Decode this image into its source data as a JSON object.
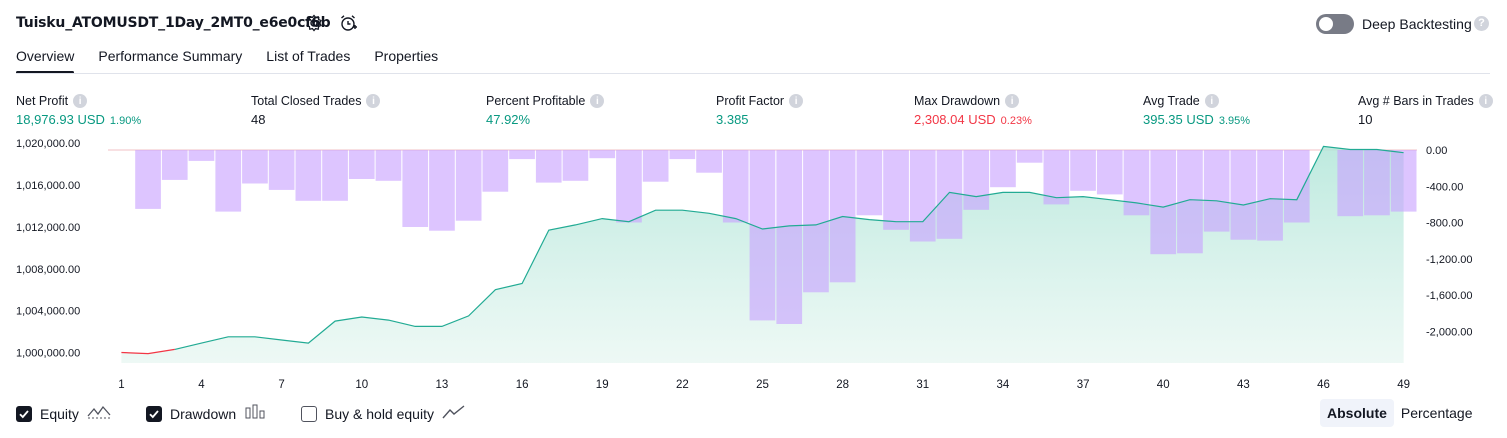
{
  "header": {
    "title": "Tuisku_ATOMUSDT_1Day_2MT0_e6e0cf6b",
    "settings_icon": "gear-icon",
    "alert_icon": "alarm-clock-plus-icon",
    "deep_backtesting_label": "Deep Backtesting",
    "deep_backtesting_enabled": false,
    "help_icon": "question-icon"
  },
  "tabs": [
    {
      "label": "Overview",
      "active": true
    },
    {
      "label": "Performance Summary",
      "active": false
    },
    {
      "label": "List of Trades",
      "active": false
    },
    {
      "label": "Properties",
      "active": false
    }
  ],
  "metrics": [
    {
      "label": "Net Profit",
      "value": "18,976.93 USD",
      "sub": "1.90%",
      "color": "#089981"
    },
    {
      "label": "Total Closed Trades",
      "value": "48",
      "sub": "",
      "color": "#131722"
    },
    {
      "label": "Percent Profitable",
      "value": "47.92%",
      "sub": "",
      "color": "#089981"
    },
    {
      "label": "Profit Factor",
      "value": "3.385",
      "sub": "",
      "color": "#089981"
    },
    {
      "label": "Max Drawdown",
      "value": "2,308.04 USD",
      "sub": "0.23%",
      "color": "#f23645"
    },
    {
      "label": "Avg Trade",
      "value": "395.35 USD",
      "sub": "3.95%",
      "color": "#089981"
    },
    {
      "label": "Avg # Bars in Trades",
      "value": "10",
      "sub": "",
      "color": "#131722"
    }
  ],
  "chart_data": {
    "type": "line",
    "x": [
      1,
      2,
      3,
      4,
      5,
      6,
      7,
      8,
      9,
      10,
      11,
      12,
      13,
      14,
      15,
      16,
      17,
      18,
      19,
      20,
      21,
      22,
      23,
      24,
      25,
      26,
      27,
      28,
      29,
      30,
      31,
      32,
      33,
      34,
      35,
      36,
      37,
      38,
      39,
      40,
      41,
      42,
      43,
      44,
      45,
      46,
      47,
      48,
      49
    ],
    "x_ticks": [
      "1",
      "4",
      "7",
      "10",
      "13",
      "16",
      "19",
      "22",
      "25",
      "28",
      "31",
      "34",
      "37",
      "40",
      "43",
      "46",
      "49"
    ],
    "series": [
      {
        "role": "equity",
        "axis": "left",
        "color": "#22ab94",
        "values": [
          1000000,
          999900,
          1000300,
          1000900,
          1001500,
          1001500,
          1001200,
          1000900,
          1003000,
          1003400,
          1003100,
          1002500,
          1002500,
          1003500,
          1006000,
          1006600,
          1011700,
          1012200,
          1012800,
          1012500,
          1013600,
          1013600,
          1013300,
          1012800,
          1011800,
          1012100,
          1012200,
          1013000,
          1012700,
          1012500,
          1012500,
          1015300,
          1014900,
          1015300,
          1015300,
          1014800,
          1014900,
          1014600,
          1014300,
          1013900,
          1014600,
          1014500,
          1014100,
          1014700,
          1014600,
          1019700,
          1019400,
          1019400,
          1019100
        ]
      },
      {
        "role": "drawdown",
        "axis": "right",
        "color": "#c8a2ff",
        "values": [
          0,
          -650,
          -330,
          -120,
          -680,
          -370,
          -440,
          -560,
          -560,
          -320,
          -340,
          -850,
          -890,
          -780,
          -460,
          -100,
          -360,
          -340,
          -90,
          -800,
          -350,
          -100,
          -250,
          -800,
          -1880,
          -1920,
          -1570,
          -1460,
          -720,
          -880,
          -1010,
          -980,
          -660,
          -410,
          -140,
          -600,
          -450,
          -490,
          -720,
          -1150,
          -1140,
          -900,
          -990,
          -1000,
          -800,
          0,
          -730,
          -720,
          -680
        ]
      }
    ],
    "left_axis": {
      "ticks": [
        "1,020,000.00",
        "1,016,000.00",
        "1,012,000.00",
        "1,008,000.00",
        "1,004,000.00",
        "1,000,000.00"
      ],
      "range": [
        999000,
        1020500
      ]
    },
    "right_axis": {
      "ticks": [
        "0.00",
        "-400.00",
        "-800.00",
        "-1,200.00",
        "-1,600.00",
        "-2,000.00"
      ],
      "range": [
        -2350,
        0
      ]
    }
  },
  "legend": {
    "equity": {
      "label": "Equity",
      "checked": true,
      "icon": "equity-line-icon"
    },
    "drawdown": {
      "label": "Drawdown",
      "checked": true,
      "icon": "drawdown-bars-icon"
    },
    "buy_hold": {
      "label": "Buy & hold equity",
      "checked": false,
      "icon": "buy-hold-line-icon"
    }
  },
  "scale_toggle": {
    "absolute": "Absolute",
    "percentage": "Percentage",
    "selected": "Absolute"
  }
}
